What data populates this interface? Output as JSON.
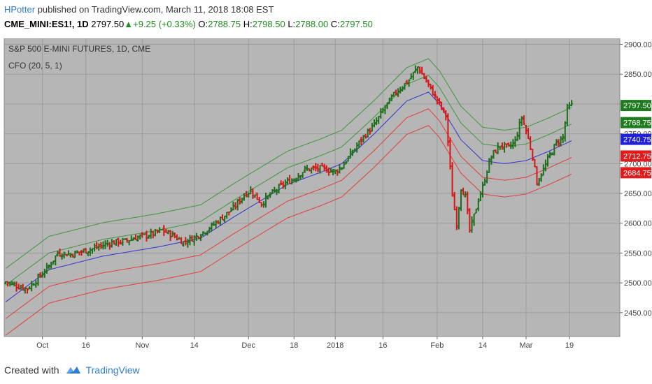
{
  "header": {
    "author": "HPotter",
    "published_text": " published on TradingView.com, March 11, 2018 18:08 EST",
    "symbol": "CME_MINI:ES1!, 1D",
    "last": " 2797.50",
    "arrow": "▲",
    "change": "+9.25 (+0.33%)",
    "o_label": " O:",
    "o_value": "2788.75",
    "h_label": " H:",
    "h_value": "2798.50",
    "l_label": " L:",
    "l_value": "2788.00",
    "c_label": " C:",
    "c_value": "2797.50"
  },
  "footer": {
    "created_with": "Created with",
    "brand": "TradingView"
  },
  "chart_data": {
    "type": "ohlc",
    "title": "S&P 500 E-MINI FUTURES, 1D, CME",
    "indicator_label": "CFO (20, 5, 1)",
    "ylim": [
      2410,
      2910
    ],
    "y_ticks": [
      2450,
      2500,
      2550,
      2600,
      2650,
      2700,
      2750,
      2800,
      2850,
      2900
    ],
    "x_ticks": [
      "Oct",
      "16",
      "Nov",
      "14",
      "Dec",
      "18",
      "2018",
      "16",
      "Feb",
      "14",
      "Mar",
      "19"
    ],
    "x_tick_bars": [
      17,
      37,
      63,
      87,
      112,
      133,
      152,
      174,
      199,
      220,
      240,
      260
    ],
    "grid": true,
    "price_labels": [
      {
        "value": "2797.50",
        "kind": "last",
        "color": "#1e7b1e"
      },
      {
        "value": "2768.75",
        "kind": "upper1",
        "color": "#1e7b1e"
      },
      {
        "value": "2740.75",
        "kind": "middle",
        "color": "#2020d8"
      },
      {
        "value": "2712.75",
        "kind": "lower1",
        "color": "#e01b1b"
      },
      {
        "value": "2684.75",
        "kind": "lower2",
        "color": "#e01b1b"
      }
    ],
    "band_offsets": [
      56,
      28,
      0,
      -28,
      -56
    ],
    "band_colors": [
      "#3c963c",
      "#3c963c",
      "#3232d2",
      "#e23c3c",
      "#e23c3c"
    ],
    "middle_anchors": [
      [
        0,
        2468
      ],
      [
        20,
        2522
      ],
      [
        45,
        2545
      ],
      [
        70,
        2560
      ],
      [
        90,
        2575
      ],
      [
        105,
        2610
      ],
      [
        115,
        2632
      ],
      [
        130,
        2665
      ],
      [
        145,
        2685
      ],
      [
        155,
        2700
      ],
      [
        170,
        2750
      ],
      [
        185,
        2805
      ],
      [
        195,
        2820
      ],
      [
        200,
        2800
      ],
      [
        210,
        2740
      ],
      [
        220,
        2705
      ],
      [
        230,
        2700
      ],
      [
        240,
        2705
      ],
      [
        250,
        2720
      ],
      [
        262,
        2740
      ]
    ],
    "close_anchors": [
      [
        0,
        2502
      ],
      [
        6,
        2494
      ],
      [
        10,
        2490
      ],
      [
        14,
        2504
      ],
      [
        20,
        2528
      ],
      [
        24,
        2550
      ],
      [
        30,
        2548
      ],
      [
        40,
        2557
      ],
      [
        48,
        2567
      ],
      [
        55,
        2570
      ],
      [
        60,
        2576
      ],
      [
        68,
        2582
      ],
      [
        72,
        2588
      ],
      [
        77,
        2580
      ],
      [
        82,
        2568
      ],
      [
        88,
        2578
      ],
      [
        95,
        2595
      ],
      [
        100,
        2610
      ],
      [
        105,
        2625
      ],
      [
        110,
        2648
      ],
      [
        113,
        2655
      ],
      [
        118,
        2633
      ],
      [
        122,
        2648
      ],
      [
        128,
        2665
      ],
      [
        133,
        2675
      ],
      [
        138,
        2690
      ],
      [
        145,
        2692
      ],
      [
        152,
        2687
      ],
      [
        155,
        2695
      ],
      [
        160,
        2720
      ],
      [
        165,
        2745
      ],
      [
        170,
        2765
      ],
      [
        175,
        2795
      ],
      [
        180,
        2820
      ],
      [
        186,
        2840
      ],
      [
        190,
        2862
      ],
      [
        192,
        2850
      ],
      [
        196,
        2825
      ],
      [
        200,
        2800
      ],
      [
        203,
        2780
      ],
      [
        206,
        2648
      ],
      [
        208,
        2598
      ],
      [
        210,
        2660
      ],
      [
        212,
        2645
      ],
      [
        214,
        2588
      ],
      [
        216,
        2612
      ],
      [
        218,
        2640
      ],
      [
        220,
        2660
      ],
      [
        223,
        2703
      ],
      [
        225,
        2718
      ],
      [
        228,
        2730
      ],
      [
        232,
        2727
      ],
      [
        235,
        2738
      ],
      [
        238,
        2778
      ],
      [
        240,
        2755
      ],
      [
        243,
        2713
      ],
      [
        245,
        2668
      ],
      [
        248,
        2690
      ],
      [
        251,
        2715
      ],
      [
        254,
        2735
      ],
      [
        257,
        2744
      ],
      [
        259,
        2792
      ],
      [
        261,
        2797.5
      ]
    ]
  }
}
